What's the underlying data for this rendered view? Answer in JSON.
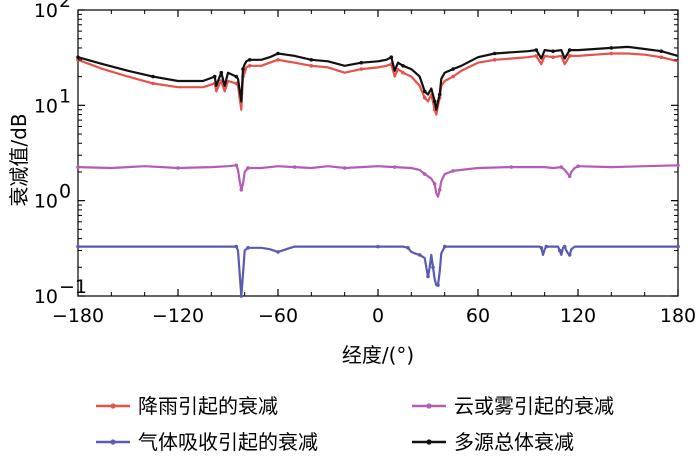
{
  "chart_data": {
    "type": "line",
    "xlabel": "经度/(°)",
    "ylabel": "衰减值/dB",
    "x_ticks": [
      "−180",
      "−120",
      "−60",
      "0",
      "60",
      "120",
      "180"
    ],
    "x_tick_values": [
      -180,
      -120,
      -60,
      0,
      60,
      120,
      180
    ],
    "y_scale": "log",
    "y_ticks": [
      {
        "base": "10",
        "exp": "−1",
        "value": 0.1
      },
      {
        "base": "10",
        "exp": "0",
        "value": 1
      },
      {
        "base": "10",
        "exp": "1",
        "value": 10
      },
      {
        "base": "10",
        "exp": "2",
        "value": 100
      }
    ],
    "xlim": [
      -180,
      180
    ],
    "ylim": [
      0.1,
      100
    ],
    "grid": false,
    "legend_position": "bottom",
    "series": [
      {
        "name": "降雨引起的衰减",
        "color": "#e8504a",
        "x": [
          -180,
          -165,
          -150,
          -135,
          -120,
          -105,
          -98,
          -97,
          -95,
          -94,
          -92,
          -90,
          -85,
          -84,
          -82,
          -81,
          -80,
          -79,
          -77,
          -70,
          -65,
          -60,
          -55,
          -50,
          -40,
          -30,
          -20,
          -10,
          0,
          5,
          8,
          10,
          12,
          15,
          20,
          25,
          28,
          30,
          32,
          34,
          35,
          36,
          37,
          38,
          40,
          45,
          50,
          60,
          70,
          80,
          90,
          95,
          98,
          100,
          105,
          110,
          112,
          115,
          120,
          130,
          140,
          150,
          160,
          170,
          180
        ],
        "values": [
          30,
          24,
          20,
          17,
          15.5,
          15.5,
          17,
          14,
          17,
          18,
          14,
          18,
          17,
          16,
          9,
          20,
          22,
          25,
          26,
          26,
          28,
          30,
          29,
          28,
          26,
          25,
          22,
          24,
          25,
          26,
          27,
          20,
          24,
          22,
          20,
          16,
          12,
          11,
          13,
          9,
          8,
          10,
          12,
          16,
          18,
          20,
          23,
          28,
          30,
          31,
          32,
          33,
          27,
          33,
          32,
          33,
          27,
          33,
          33,
          34,
          35,
          35,
          34,
          32,
          29
        ]
      },
      {
        "name": "云或雾引起的衰减",
        "color": "#b45cb4",
        "x": [
          -180,
          -160,
          -140,
          -120,
          -100,
          -90,
          -85,
          -84,
          -83,
          -82,
          -81,
          -80,
          -78,
          -70,
          -60,
          -50,
          -40,
          -30,
          -20,
          -10,
          0,
          10,
          20,
          25,
          28,
          30,
          32,
          34,
          35,
          36,
          37,
          38,
          40,
          45,
          50,
          60,
          80,
          100,
          105,
          110,
          112,
          114,
          115,
          116,
          118,
          120,
          140,
          160,
          180
        ],
        "values": [
          2.25,
          2.2,
          2.3,
          2.2,
          2.25,
          2.3,
          2.35,
          2.1,
          1.6,
          1.3,
          1.5,
          2.0,
          2.2,
          2.2,
          2.3,
          2.25,
          2.2,
          2.3,
          2.2,
          2.25,
          2.3,
          2.25,
          2.2,
          2.1,
          1.9,
          1.8,
          1.7,
          1.5,
          1.2,
          1.1,
          1.3,
          1.6,
          1.9,
          2.05,
          2.1,
          2.2,
          2.25,
          2.25,
          2.2,
          2.25,
          2.1,
          1.9,
          1.8,
          2.0,
          2.2,
          2.3,
          2.25,
          2.3,
          2.35
        ]
      },
      {
        "name": "气体吸收引起的衰减",
        "color": "#5a5ab4",
        "x": [
          -180,
          -100,
          -86,
          -85,
          -84,
          -83,
          -82,
          -81,
          -80,
          -78,
          -70,
          -65,
          -60,
          -55,
          -50,
          0,
          10,
          15,
          18,
          20,
          22,
          25,
          28,
          29,
          30,
          31,
          32,
          33,
          34,
          35,
          36,
          37,
          38,
          40,
          50,
          97,
          98,
          99,
          100,
          101,
          105,
          108,
          109,
          110,
          111,
          112,
          113,
          114,
          115,
          116,
          118,
          180
        ],
        "values": [
          0.33,
          0.33,
          0.33,
          0.33,
          0.3,
          0.17,
          0.1,
          0.17,
          0.3,
          0.32,
          0.32,
          0.31,
          0.29,
          0.31,
          0.33,
          0.33,
          0.33,
          0.33,
          0.32,
          0.29,
          0.28,
          0.27,
          0.25,
          0.2,
          0.16,
          0.2,
          0.27,
          0.2,
          0.15,
          0.13,
          0.13,
          0.18,
          0.28,
          0.33,
          0.33,
          0.33,
          0.32,
          0.27,
          0.31,
          0.33,
          0.33,
          0.33,
          0.3,
          0.27,
          0.32,
          0.33,
          0.3,
          0.28,
          0.27,
          0.31,
          0.33,
          0.33
        ]
      },
      {
        "name": "多源总体衰减",
        "color": "#111111",
        "x": [
          -180,
          -165,
          -150,
          -135,
          -120,
          -105,
          -98,
          -97,
          -95,
          -94,
          -92,
          -90,
          -85,
          -84,
          -82,
          -81,
          -80,
          -79,
          -77,
          -70,
          -65,
          -60,
          -55,
          -50,
          -40,
          -30,
          -20,
          -10,
          0,
          5,
          8,
          10,
          12,
          15,
          20,
          25,
          28,
          30,
          32,
          34,
          35,
          36,
          37,
          38,
          40,
          45,
          50,
          60,
          70,
          80,
          90,
          95,
          98,
          100,
          105,
          110,
          112,
          115,
          120,
          130,
          140,
          150,
          160,
          170,
          180
        ],
        "values": [
          32,
          27,
          23,
          20,
          18,
          18,
          20,
          16,
          20,
          22,
          16,
          22,
          20,
          19,
          11,
          24,
          27,
          29,
          30,
          30,
          32,
          35,
          34,
          33,
          30,
          29,
          26,
          28,
          29,
          30,
          32,
          23,
          28,
          26,
          24,
          20,
          14,
          13,
          15,
          11,
          9,
          11,
          13,
          19,
          22,
          24,
          26,
          32,
          35,
          36,
          37,
          38,
          31,
          38,
          37,
          38,
          31,
          38,
          38,
          39,
          40,
          41,
          39,
          37,
          33
        ]
      }
    ]
  }
}
